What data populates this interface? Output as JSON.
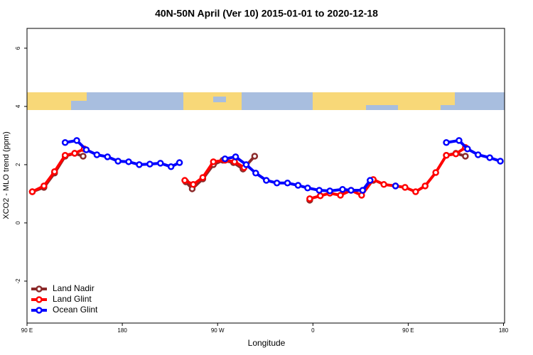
{
  "chart_data": {
    "type": "line",
    "title": "40N-50N April (Ver 10)   2015-01-01 to 2020-12-18",
    "x_label": "Longitude",
    "y_label": "XCO2 - MLO trend (ppm)",
    "xlim": [
      90,
      541
    ],
    "ylim": [
      -3.44,
      6.68
    ],
    "xticks": [
      {
        "value": 90,
        "label": "90 E"
      },
      180,
      {
        "value": 270,
        "label": "90 W"
      },
      {
        "value": 360,
        "label": "0"
      },
      {
        "value": 450,
        "label": "90 E"
      },
      {
        "value": 540,
        "label": "180"
      }
    ],
    "yticks": [
      -2,
      0,
      2,
      4,
      6
    ],
    "legend": "bottom-left",
    "series": [
      {
        "name": "Land Nadir",
        "color": "#8b2a2a",
        "x": [
          95,
          106,
          116,
          126,
          135,
          143,
          190,
          240,
          246,
          256,
          266,
          275,
          285,
          294,
          305,
          330,
          357,
          390,
          417,
          460,
          486,
          495,
          504
        ],
        "values": [
          1.07,
          1.22,
          1.71,
          2.29,
          2.39,
          2.29,
          null,
          1.41,
          1.17,
          1.51,
          2.0,
          2.15,
          2.07,
          1.85,
          2.29,
          null,
          0.78,
          null,
          1.46,
          null,
          2.32,
          2.39,
          2.29
        ]
      },
      {
        "name": "Land Glint",
        "color": "#ff0000",
        "x": [
          95,
          106,
          116,
          126,
          135,
          144,
          190,
          239,
          247,
          256,
          266,
          277,
          286,
          295,
          330,
          357,
          367,
          376,
          386,
          396,
          406,
          417,
          427,
          438,
          447,
          457,
          466,
          476,
          486,
          495,
          504
        ],
        "values": [
          1.07,
          1.27,
          1.76,
          2.32,
          2.39,
          2.54,
          null,
          1.46,
          1.32,
          1.56,
          2.1,
          2.15,
          2.1,
          1.9,
          null,
          0.83,
          0.93,
          1.02,
          0.95,
          1.12,
          0.95,
          1.49,
          1.32,
          1.27,
          1.22,
          1.07,
          1.27,
          1.73,
          2.32,
          2.37,
          2.59
        ]
      },
      {
        "name": "Ocean Glint",
        "color": "#0000ff",
        "x": [
          126,
          137,
          146,
          156,
          166,
          176,
          186,
          196,
          206,
          216,
          226,
          234,
          255,
          277,
          287,
          297,
          306,
          316,
          326,
          336,
          346,
          355,
          366,
          376,
          388,
          396,
          407,
          414,
          426,
          438,
          460,
          486,
          498,
          506,
          516,
          527,
          537
        ],
        "values": [
          2.76,
          2.83,
          2.51,
          2.34,
          2.27,
          2.12,
          2.1,
          2.0,
          2.02,
          2.05,
          1.93,
          2.07,
          null,
          2.2,
          2.27,
          2.0,
          1.71,
          1.46,
          1.37,
          1.37,
          1.29,
          1.2,
          1.12,
          1.1,
          1.15,
          1.12,
          1.12,
          1.46,
          null,
          1.27,
          null,
          2.76,
          2.83,
          2.54,
          2.34,
          2.24,
          2.12
        ]
      }
    ]
  }
}
